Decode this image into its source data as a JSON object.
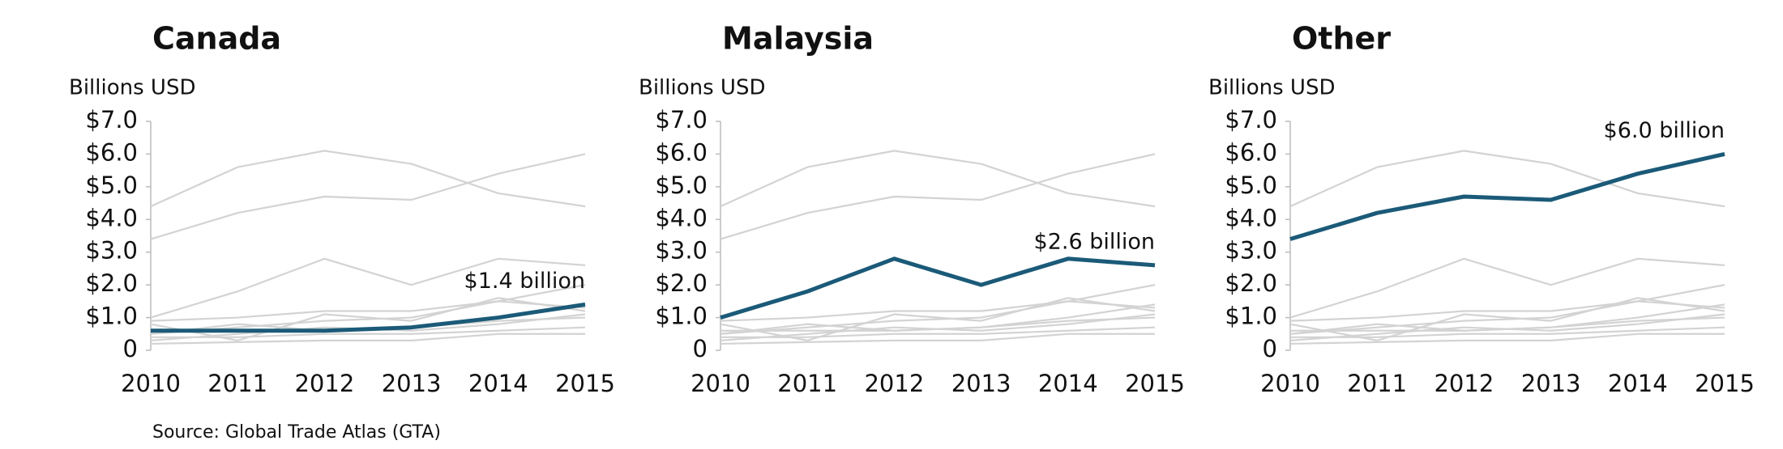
{
  "source": "Source:  Global Trade Atlas (GTA)",
  "chart_data": [
    {
      "type": "line",
      "title": "Canada",
      "ylabel": "Billions USD",
      "categories": [
        "2010",
        "2011",
        "2012",
        "2013",
        "2014",
        "2015"
      ],
      "ylim": [
        0,
        7
      ],
      "yticks": [
        0,
        {
          "value": 1,
          "label": "$1.0"
        },
        {
          "value": 2,
          "label": "$2.0"
        },
        {
          "value": 3,
          "label": "$3.0"
        },
        {
          "value": 4,
          "label": "$4.0"
        },
        {
          "value": 5,
          "label": "$5.0"
        },
        {
          "value": 6,
          "label": "$6.0"
        },
        {
          "value": 7,
          "label": "$7.0"
        }
      ],
      "series": [
        {
          "color": "#d3d3d3",
          "values": [
            4.4,
            5.6,
            6.1,
            5.7,
            4.8,
            4.4
          ]
        },
        {
          "color": "#d3d3d3",
          "values": [
            3.4,
            4.2,
            4.7,
            4.6,
            5.4,
            6.0
          ]
        },
        {
          "color": "#d3d3d3",
          "values": [
            1.0,
            1.8,
            2.8,
            2.0,
            2.8,
            2.6
          ]
        },
        {
          "color": "#d3d3d3",
          "values": [
            0.5,
            0.7,
            0.9,
            1.0,
            1.5,
            2.0
          ]
        },
        {
          "color": "#d3d3d3",
          "values": [
            0.9,
            1.0,
            1.2,
            1.2,
            1.5,
            1.3
          ]
        },
        {
          "color": "#d3d3d3",
          "values": [
            0.8,
            0.3,
            1.1,
            0.9,
            1.6,
            1.2
          ]
        },
        {
          "color": "#d3d3d3",
          "values": [
            0.5,
            0.8,
            0.6,
            0.7,
            0.9,
            1.0
          ]
        },
        {
          "color": "#d3d3d3",
          "values": [
            0.3,
            0.5,
            0.7,
            0.6,
            0.8,
            1.1
          ]
        },
        {
          "color": "#d3d3d3",
          "values": [
            0.2,
            0.25,
            0.3,
            0.3,
            0.5,
            0.5
          ]
        },
        {
          "color": "#d3d3d3",
          "values": [
            0.4,
            0.4,
            0.5,
            0.5,
            0.6,
            0.7
          ]
        },
        {
          "color": "#1b5a78",
          "highlight": true,
          "values": [
            0.6,
            0.6,
            0.6,
            0.7,
            1.0,
            1.4
          ],
          "value_labels": [
            null,
            null,
            null,
            null,
            null,
            "$1.4 billion"
          ]
        }
      ]
    },
    {
      "type": "line",
      "title": "Malaysia",
      "ylabel": "Billions USD",
      "categories": [
        "2010",
        "2011",
        "2012",
        "2013",
        "2014",
        "2015"
      ],
      "ylim": [
        0,
        7
      ],
      "yticks": [
        0,
        {
          "value": 1,
          "label": "$1.0"
        },
        {
          "value": 2,
          "label": "$2.0"
        },
        {
          "value": 3,
          "label": "$3.0"
        },
        {
          "value": 4,
          "label": "$4.0"
        },
        {
          "value": 5,
          "label": "$5.0"
        },
        {
          "value": 6,
          "label": "$6.0"
        },
        {
          "value": 7,
          "label": "$7.0"
        }
      ],
      "series": [
        {
          "color": "#d3d3d3",
          "values": [
            4.4,
            5.6,
            6.1,
            5.7,
            4.8,
            4.4
          ]
        },
        {
          "color": "#d3d3d3",
          "values": [
            3.4,
            4.2,
            4.7,
            4.6,
            5.4,
            6.0
          ]
        },
        {
          "color": "#d3d3d3",
          "values": [
            0.6,
            0.6,
            0.6,
            0.7,
            1.0,
            1.4
          ]
        },
        {
          "color": "#d3d3d3",
          "values": [
            0.5,
            0.7,
            0.9,
            1.0,
            1.5,
            2.0
          ]
        },
        {
          "color": "#d3d3d3",
          "values": [
            0.9,
            1.0,
            1.2,
            1.2,
            1.5,
            1.3
          ]
        },
        {
          "color": "#d3d3d3",
          "values": [
            0.8,
            0.3,
            1.1,
            0.9,
            1.6,
            1.2
          ]
        },
        {
          "color": "#d3d3d3",
          "values": [
            0.5,
            0.8,
            0.6,
            0.7,
            0.9,
            1.0
          ]
        },
        {
          "color": "#d3d3d3",
          "values": [
            0.3,
            0.5,
            0.7,
            0.6,
            0.8,
            1.1
          ]
        },
        {
          "color": "#d3d3d3",
          "values": [
            0.2,
            0.25,
            0.3,
            0.3,
            0.5,
            0.5
          ]
        },
        {
          "color": "#d3d3d3",
          "values": [
            0.4,
            0.4,
            0.5,
            0.5,
            0.6,
            0.7
          ]
        },
        {
          "color": "#1b5a78",
          "highlight": true,
          "values": [
            1.0,
            1.8,
            2.8,
            2.0,
            2.8,
            2.6
          ],
          "value_labels": [
            null,
            null,
            null,
            null,
            null,
            "$2.6 billion"
          ]
        }
      ]
    },
    {
      "type": "line",
      "title": "Other",
      "ylabel": "Billions USD",
      "categories": [
        "2010",
        "2011",
        "2012",
        "2013",
        "2014",
        "2015"
      ],
      "ylim": [
        0,
        7
      ],
      "yticks": [
        0,
        {
          "value": 1,
          "label": "$1.0"
        },
        {
          "value": 2,
          "label": "$2.0"
        },
        {
          "value": 3,
          "label": "$3.0"
        },
        {
          "value": 4,
          "label": "$4.0"
        },
        {
          "value": 5,
          "label": "$5.0"
        },
        {
          "value": 6,
          "label": "$6.0"
        },
        {
          "value": 7,
          "label": "$7.0"
        }
      ],
      "series": [
        {
          "color": "#d3d3d3",
          "values": [
            4.4,
            5.6,
            6.1,
            5.7,
            4.8,
            4.4
          ]
        },
        {
          "color": "#d3d3d3",
          "values": [
            1.0,
            1.8,
            2.8,
            2.0,
            2.8,
            2.6
          ]
        },
        {
          "color": "#d3d3d3",
          "values": [
            0.6,
            0.6,
            0.6,
            0.7,
            1.0,
            1.4
          ]
        },
        {
          "color": "#d3d3d3",
          "values": [
            0.5,
            0.7,
            0.9,
            1.0,
            1.5,
            2.0
          ]
        },
        {
          "color": "#d3d3d3",
          "values": [
            0.9,
            1.0,
            1.2,
            1.2,
            1.5,
            1.3
          ]
        },
        {
          "color": "#d3d3d3",
          "values": [
            0.8,
            0.3,
            1.1,
            0.9,
            1.6,
            1.2
          ]
        },
        {
          "color": "#d3d3d3",
          "values": [
            0.5,
            0.8,
            0.6,
            0.7,
            0.9,
            1.0
          ]
        },
        {
          "color": "#d3d3d3",
          "values": [
            0.3,
            0.5,
            0.7,
            0.6,
            0.8,
            1.1
          ]
        },
        {
          "color": "#d3d3d3",
          "values": [
            0.2,
            0.25,
            0.3,
            0.3,
            0.5,
            0.5
          ]
        },
        {
          "color": "#d3d3d3",
          "values": [
            0.4,
            0.4,
            0.5,
            0.5,
            0.6,
            0.7
          ]
        },
        {
          "color": "#1b5a78",
          "highlight": true,
          "values": [
            3.4,
            4.2,
            4.7,
            4.6,
            5.4,
            6.0
          ],
          "value_labels": [
            null,
            null,
            null,
            null,
            null,
            "$6.0 billion"
          ]
        }
      ]
    }
  ]
}
